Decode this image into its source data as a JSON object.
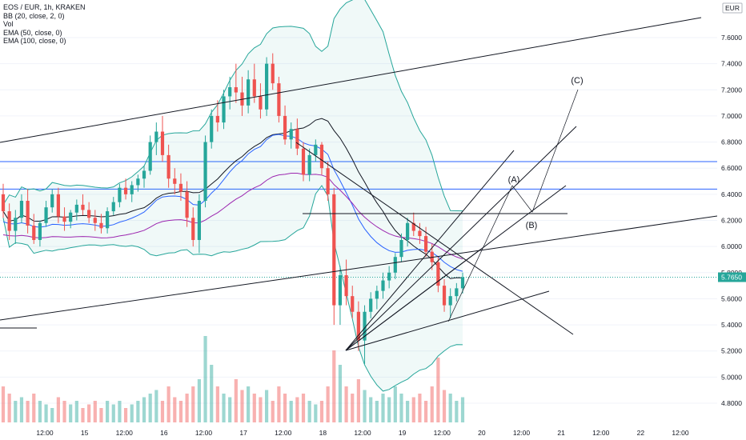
{
  "header": {
    "symbol_line": "EOS / EUR, 1h, KRAKEN",
    "indicators": [
      "BB (20, close, 2, 0)",
      "Vol",
      "EMA (50, close, 0)",
      "EMA (100, close, 0)"
    ]
  },
  "currency_badge": "EUR",
  "last_price": "5.7650",
  "colors": {
    "up": "#26a69a",
    "down": "#ef5350",
    "bb": "#26a69a",
    "ema50": "#2962ff",
    "ema100": "#9c27b0",
    "hline": "#2962ff",
    "badge": "#26a69a"
  },
  "chart_data": {
    "type": "candlestick",
    "y_axis": {
      "ticks": [
        "7.6000",
        "7.4000",
        "7.2000",
        "7.0000",
        "6.8000",
        "6.6000",
        "6.4000",
        "6.2000",
        "6.0000",
        "5.8000",
        "5.6000",
        "5.4000",
        "5.2000",
        "5.0000",
        "4.8000"
      ],
      "range": [
        4.64,
        7.78
      ]
    },
    "x_axis": {
      "ticks": [
        "12:00",
        "15",
        "12:00",
        "16",
        "12:00",
        "17",
        "12:00",
        "18",
        "12:00",
        "19",
        "12:00",
        "20",
        "12:00",
        "21",
        "12:00",
        "22",
        "12:00"
      ]
    },
    "horizontal_levels": [
      6.65,
      6.44
    ],
    "resistance_level": 6.25,
    "candles_ohlc": [
      [
        6.4,
        6.48,
        6.22,
        6.27
      ],
      [
        6.27,
        6.33,
        6.05,
        6.12
      ],
      [
        6.12,
        6.28,
        6.02,
        6.22
      ],
      [
        6.22,
        6.4,
        6.18,
        6.35
      ],
      [
        6.35,
        6.44,
        6.1,
        6.16
      ],
      [
        6.16,
        6.25,
        6.02,
        6.05
      ],
      [
        6.05,
        6.2,
        6.0,
        6.18
      ],
      [
        6.18,
        6.35,
        6.15,
        6.3
      ],
      [
        6.3,
        6.44,
        6.26,
        6.4
      ],
      [
        6.4,
        6.45,
        6.18,
        6.23
      ],
      [
        6.23,
        6.3,
        6.12,
        6.19
      ],
      [
        6.19,
        6.28,
        6.14,
        6.26
      ],
      [
        6.26,
        6.36,
        6.2,
        6.32
      ],
      [
        6.32,
        6.4,
        6.24,
        6.28
      ],
      [
        6.28,
        6.34,
        6.18,
        6.22
      ],
      [
        6.22,
        6.28,
        6.12,
        6.18
      ],
      [
        6.18,
        6.25,
        6.1,
        6.14
      ],
      [
        6.14,
        6.3,
        6.1,
        6.27
      ],
      [
        6.27,
        6.38,
        6.24,
        6.34
      ],
      [
        6.34,
        6.48,
        6.3,
        6.45
      ],
      [
        6.45,
        6.52,
        6.36,
        6.4
      ],
      [
        6.4,
        6.5,
        6.34,
        6.47
      ],
      [
        6.47,
        6.55,
        6.42,
        6.52
      ],
      [
        6.52,
        6.62,
        6.45,
        6.58
      ],
      [
        6.58,
        6.85,
        6.55,
        6.8
      ],
      [
        6.8,
        6.95,
        6.7,
        6.88
      ],
      [
        6.88,
        7.0,
        6.65,
        6.7
      ],
      [
        6.7,
        6.78,
        6.45,
        6.52
      ],
      [
        6.52,
        6.6,
        6.4,
        6.48
      ],
      [
        6.48,
        6.56,
        6.35,
        6.42
      ],
      [
        6.42,
        6.5,
        6.15,
        6.22
      ],
      [
        6.22,
        6.3,
        6.0,
        6.05
      ],
      [
        6.05,
        6.4,
        5.95,
        6.35
      ],
      [
        6.35,
        6.85,
        6.3,
        6.8
      ],
      [
        6.8,
        7.05,
        6.75,
        7.0
      ],
      [
        7.0,
        7.12,
        6.88,
        6.95
      ],
      [
        6.95,
        7.2,
        6.9,
        7.15
      ],
      [
        7.15,
        7.3,
        7.05,
        7.22
      ],
      [
        7.22,
        7.4,
        7.1,
        7.18
      ],
      [
        7.18,
        7.3,
        7.0,
        7.08
      ],
      [
        7.08,
        7.35,
        7.02,
        7.28
      ],
      [
        7.28,
        7.4,
        7.1,
        7.15
      ],
      [
        7.15,
        7.25,
        6.98,
        7.05
      ],
      [
        7.05,
        7.45,
        7.0,
        7.4
      ],
      [
        7.4,
        7.48,
        7.2,
        7.25
      ],
      [
        7.25,
        7.3,
        6.95,
        7.0
      ],
      [
        7.0,
        7.08,
        6.78,
        6.82
      ],
      [
        6.82,
        6.95,
        6.75,
        6.9
      ],
      [
        6.9,
        6.98,
        6.7,
        6.75
      ],
      [
        6.75,
        6.8,
        6.5,
        6.55
      ],
      [
        6.55,
        6.75,
        6.5,
        6.7
      ],
      [
        6.7,
        6.82,
        6.65,
        6.78
      ],
      [
        6.78,
        6.8,
        6.55,
        6.6
      ],
      [
        6.6,
        6.65,
        6.35,
        6.4
      ],
      [
        6.4,
        6.45,
        5.4,
        5.55
      ],
      [
        5.55,
        5.85,
        5.4,
        5.78
      ],
      [
        5.78,
        5.9,
        5.55,
        5.62
      ],
      [
        5.62,
        5.7,
        5.45,
        5.5
      ],
      [
        5.5,
        5.58,
        5.2,
        5.28
      ],
      [
        5.28,
        5.55,
        5.1,
        5.5
      ],
      [
        5.5,
        5.65,
        5.45,
        5.6
      ],
      [
        5.6,
        5.7,
        5.52,
        5.66
      ],
      [
        5.66,
        5.8,
        5.6,
        5.74
      ],
      [
        5.74,
        5.85,
        5.68,
        5.8
      ],
      [
        5.8,
        5.95,
        5.75,
        5.92
      ],
      [
        5.92,
        6.1,
        5.88,
        6.05
      ],
      [
        6.05,
        6.22,
        6.0,
        6.18
      ],
      [
        6.18,
        6.26,
        6.08,
        6.12
      ],
      [
        6.12,
        6.18,
        6.02,
        6.08
      ],
      [
        6.08,
        6.15,
        5.92,
        5.96
      ],
      [
        5.96,
        6.02,
        5.82,
        5.88
      ],
      [
        5.88,
        5.92,
        5.65,
        5.7
      ],
      [
        5.7,
        5.75,
        5.5,
        5.55
      ],
      [
        5.55,
        5.68,
        5.45,
        5.62
      ],
      [
        5.62,
        5.72,
        5.58,
        5.68
      ],
      [
        5.68,
        5.8,
        5.64,
        5.765
      ]
    ],
    "volume": [
      0.5,
      0.4,
      0.3,
      0.35,
      0.3,
      0.4,
      0.3,
      0.25,
      0.2,
      0.35,
      0.3,
      0.25,
      0.3,
      0.2,
      0.25,
      0.3,
      0.2,
      0.3,
      0.25,
      0.3,
      0.2,
      0.25,
      0.3,
      0.35,
      0.4,
      0.45,
      0.3,
      0.5,
      0.35,
      0.3,
      0.4,
      0.5,
      0.6,
      1.2,
      0.8,
      0.5,
      0.4,
      0.35,
      0.6,
      0.45,
      0.5,
      0.4,
      0.35,
      0.45,
      0.3,
      0.5,
      0.4,
      0.3,
      0.35,
      0.4,
      0.3,
      0.25,
      0.3,
      0.5,
      1.0,
      0.8,
      0.5,
      0.4,
      0.6,
      0.45,
      0.35,
      0.3,
      0.4,
      0.35,
      0.5,
      0.4,
      0.3,
      0.35,
      0.4,
      0.3,
      0.5,
      0.9,
      0.45,
      0.4,
      0.3,
      0.35
    ],
    "drawings": {
      "wave_labels": [
        "(A)",
        "(B)",
        "(C)"
      ]
    }
  }
}
